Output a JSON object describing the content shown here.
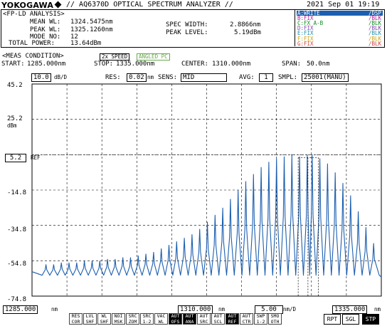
{
  "header": {
    "brand": "YOKOGAWA",
    "title": "// AQ6370D OPTICAL SPECTRUM ANALYZER //",
    "datetime": "2021 Sep 01 19:19"
  },
  "analysis": {
    "title": "<FP-LD ANALYSIS>",
    "mean_wl_label": "MEAN WL:",
    "mean_wl": "1324.5475nm",
    "peak_wl_label": "PEAK WL:",
    "peak_wl": "1325.1260nm",
    "mode_no_label": "MODE NO:",
    "mode_no": "12",
    "total_power_label": "TOTAL POWER:",
    "total_power": "13.64dBm",
    "spec_width_label": "SPEC WIDTH:",
    "spec_width": "2.8866nm",
    "peak_level_label": "PEAK LEVEL:",
    "peak_level": "5.19dBm"
  },
  "traces": [
    {
      "name": "A:WRITE",
      "state": "/DSP",
      "color": "#1c5fb0"
    },
    {
      "name": "B:FIX",
      "state": "/BLK",
      "color": "#b01c9a"
    },
    {
      "name": "C:FX A-B",
      "state": "/BLK",
      "color": "#0a8f1f"
    },
    {
      "name": "D:FIX",
      "state": "/BLK",
      "color": "#8a3fb0"
    },
    {
      "name": "E:FIX",
      "state": "/BLK",
      "color": "#1c8fb0"
    },
    {
      "name": "F:FIX",
      "state": "/BLK",
      "color": "#d0a010"
    },
    {
      "name": "G:FIX",
      "state": "/BLK",
      "color": "#d04040"
    }
  ],
  "meas": {
    "title": "<MEAS CONDITION>",
    "speed": "2x SPEED",
    "angled": "ANGLED PC",
    "start_label": "START:",
    "start": "1285.000nm",
    "stop_label": "STOP:",
    "stop": "1335.000nm",
    "center_label": "CENTER:",
    "center": "1310.000nm",
    "span_label": "SPAN:",
    "span": "50.0nm"
  },
  "settings": {
    "scale": "10.0",
    "scale_unit": "dB/D",
    "res_label": "RES:",
    "res": "0.02",
    "res_unit": "nm",
    "sens_label": "SENS:",
    "sens": "MID",
    "avg_label": "AVG:",
    "avg": "1",
    "smpl_label": "SMPL:",
    "smpl": "25001(MANU)"
  },
  "yaxis": {
    "ticks": [
      "45.2",
      "25.2",
      "5.2",
      "-14.8",
      "-34.8",
      "-54.8",
      "-74.8"
    ],
    "unit": "dBm",
    "ref_label": "REF"
  },
  "xaxis": {
    "start": "1285.000",
    "center": "1310.000",
    "per_div": "5.00",
    "stop": "1335.000",
    "unit": "nm",
    "per_div_unit": "nm/D"
  },
  "chart_data": {
    "type": "line",
    "xlabel": "",
    "ylabel": "",
    "xlim": [
      1285,
      1335
    ],
    "ylim": [
      -74.8,
      45.2
    ],
    "grid": true,
    "series": [
      {
        "peaks_x": [
          1287.0,
          1288.1,
          1289.2,
          1290.3,
          1291.4,
          1292.5,
          1293.6,
          1294.7,
          1295.8,
          1296.9,
          1298.0,
          1299.1,
          1300.2,
          1301.3,
          1302.4,
          1303.5,
          1304.6,
          1305.7,
          1306.8,
          1307.9,
          1309.0,
          1310.1,
          1311.2,
          1312.3,
          1313.4,
          1314.5,
          1315.6,
          1316.7,
          1317.8,
          1318.9,
          1320.0,
          1321.1,
          1322.2,
          1323.3,
          1324.4,
          1325.1,
          1326.2,
          1327.3,
          1328.4,
          1329.5,
          1330.6,
          1331.7,
          1332.8,
          1333.9
        ],
        "peaks_y": [
          -57,
          -57,
          -56,
          -56,
          -56,
          -55,
          -55,
          -55,
          -54,
          -54,
          -53,
          -53,
          -52,
          -51,
          -50,
          -48,
          -46,
          -44,
          -42,
          -40,
          -37,
          -33,
          -29,
          -25,
          -20,
          -15,
          -10,
          -6,
          -2,
          1,
          3,
          4,
          5,
          4,
          5,
          5.2,
          3,
          0,
          -5,
          -11,
          -18,
          -27,
          -36,
          -45
        ],
        "valleys_y": -63
      }
    ]
  },
  "buttons": [
    {
      "l1": "RES",
      "l2": "COR",
      "on": false
    },
    {
      "l1": "LVL",
      "l2": "SHF",
      "on": false
    },
    {
      "l1": "WL",
      "l2": "SHF",
      "on": false
    },
    {
      "l1": "NOI",
      "l2": "MSK",
      "on": false
    },
    {
      "l1": "SRC",
      "l2": "ZOM",
      "on": false
    },
    {
      "l1": "SRC",
      "l2": "1-2",
      "on": false
    },
    {
      "l1": "VAC",
      "l2": "WL",
      "on": false
    },
    {
      "l1": "AUT",
      "l2": "OFS",
      "on": true
    },
    {
      "l1": "AUT",
      "l2": "ANA",
      "on": true
    },
    {
      "l1": "AUT",
      "l2": "SRC",
      "on": false
    },
    {
      "l1": "AUT",
      "l2": "SCL",
      "on": false
    },
    {
      "l1": "AUT",
      "l2": "REF",
      "on": true
    },
    {
      "l1": "AUT",
      "l2": "CTR",
      "on": false
    },
    {
      "l1": "SWP",
      "l2": "1-2",
      "on": false
    },
    {
      "l1": "SMO",
      "l2": "OTH",
      "on": false
    }
  ],
  "run_buttons": [
    {
      "label": "RPT",
      "on": false
    },
    {
      "label": "SGL",
      "on": false
    },
    {
      "label": "STP",
      "on": true
    }
  ]
}
